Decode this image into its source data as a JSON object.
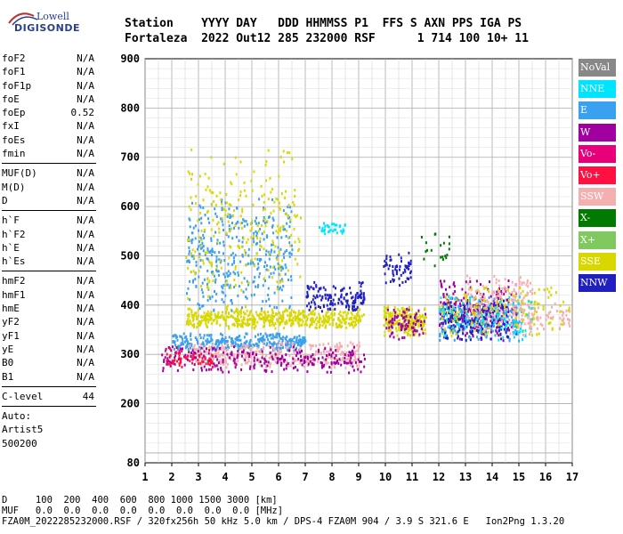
{
  "logo": {
    "line1": "Lowell",
    "line2": "DIGISONDE"
  },
  "header": {
    "line1": "Station    YYYY DAY   DDD HHMMSS P1  FFS S AXN PPS IGA PS",
    "line2": "Fortaleza  2022 Out12 285 232000 RSF      1 714 100 10+ 11"
  },
  "params": {
    "group1": [
      {
        "k": "foF2",
        "v": "N/A"
      },
      {
        "k": "foF1",
        "v": "N/A"
      },
      {
        "k": "foF1p",
        "v": "N/A"
      },
      {
        "k": "foE",
        "v": "N/A"
      },
      {
        "k": "foEp",
        "v": "0.52"
      },
      {
        "k": "fxI",
        "v": "N/A"
      },
      {
        "k": "foEs",
        "v": "N/A"
      },
      {
        "k": "fmin",
        "v": "N/A"
      }
    ],
    "group2": [
      {
        "k": "MUF(D)",
        "v": "N/A"
      },
      {
        "k": "M(D)",
        "v": "N/A"
      },
      {
        "k": "D",
        "v": "N/A"
      }
    ],
    "group3": [
      {
        "k": "h`F",
        "v": "N/A"
      },
      {
        "k": "h`F2",
        "v": "N/A"
      },
      {
        "k": "h`E",
        "v": "N/A"
      },
      {
        "k": "h`Es",
        "v": "N/A"
      }
    ],
    "group4": [
      {
        "k": "hmF2",
        "v": "N/A"
      },
      {
        "k": "hmF1",
        "v": "N/A"
      },
      {
        "k": "hmE",
        "v": "N/A"
      },
      {
        "k": "yF2",
        "v": "N/A"
      },
      {
        "k": "yF1",
        "v": "N/A"
      },
      {
        "k": "yE",
        "v": "N/A"
      },
      {
        "k": "B0",
        "v": "N/A"
      },
      {
        "k": "B1",
        "v": "N/A"
      }
    ],
    "clevel": {
      "k": "C-level",
      "v": "44"
    },
    "auto": [
      "Auto:",
      "Artist5",
      "500200"
    ]
  },
  "legend": [
    {
      "label": "NoVal",
      "color": "#888888"
    },
    {
      "label": "NNE",
      "color": "#00e5ff"
    },
    {
      "label": "E",
      "color": "#3aa0f0"
    },
    {
      "label": "W",
      "color": "#a000a0"
    },
    {
      "label": "Vo-",
      "color": "#e8007a"
    },
    {
      "label": "Vo+",
      "color": "#ff1040"
    },
    {
      "label": "SSW",
      "color": "#f4b0b0"
    },
    {
      "label": "X-",
      "color": "#007a00"
    },
    {
      "label": "X+",
      "color": "#80c860"
    },
    {
      "label": "SSE",
      "color": "#d8d800"
    },
    {
      "label": "NNW",
      "color": "#2020c0"
    }
  ],
  "chart_data": {
    "type": "scatter",
    "title": "",
    "xlabel": "",
    "ylabel": "",
    "xlim": [
      1,
      17
    ],
    "ylim": [
      80,
      900
    ],
    "xticks": [
      "1",
      "2",
      "3",
      "4",
      "5",
      "6",
      "7",
      "8",
      "9",
      "10",
      "11",
      "12",
      "13",
      "14",
      "15",
      "16",
      "17"
    ],
    "yticks": [
      "80",
      "200",
      "300",
      "400",
      "500",
      "600",
      "700",
      "800",
      "900"
    ],
    "grid": true,
    "clusters": [
      {
        "series": "SSE",
        "x": [
          2.5,
          9.2
        ],
        "y": [
          355,
          395
        ],
        "n": 520
      },
      {
        "series": "E",
        "x": [
          2.0,
          7.0
        ],
        "y": [
          310,
          345
        ],
        "n": 320
      },
      {
        "series": "SSW",
        "x": [
          2.6,
          9.0
        ],
        "y": [
          275,
          330
        ],
        "n": 380
      },
      {
        "series": "W",
        "x": [
          1.6,
          9.2
        ],
        "y": [
          265,
          320
        ],
        "n": 260
      },
      {
        "series": "Vo+",
        "x": [
          1.7,
          3.5
        ],
        "y": [
          275,
          315
        ],
        "n": 60
      },
      {
        "series": "E",
        "x": [
          2.5,
          6.5
        ],
        "y": [
          380,
          620
        ],
        "n": 380
      },
      {
        "series": "SSE",
        "x": [
          2.5,
          6.8
        ],
        "y": [
          380,
          720
        ],
        "n": 260
      },
      {
        "series": "NNW",
        "x": [
          7.0,
          9.2
        ],
        "y": [
          390,
          450
        ],
        "n": 140
      },
      {
        "series": "NNE",
        "x": [
          7.5,
          8.5
        ],
        "y": [
          545,
          570
        ],
        "n": 35
      },
      {
        "series": "SSE",
        "x": [
          9.9,
          11.5
        ],
        "y": [
          340,
          400
        ],
        "n": 220
      },
      {
        "series": "NNW",
        "x": [
          9.9,
          11.0
        ],
        "y": [
          440,
          510
        ],
        "n": 60
      },
      {
        "series": "W",
        "x": [
          10.0,
          11.5
        ],
        "y": [
          330,
          400
        ],
        "n": 80
      },
      {
        "series": "E",
        "x": [
          12.0,
          15.0
        ],
        "y": [
          330,
          420
        ],
        "n": 260
      },
      {
        "series": "W",
        "x": [
          12.0,
          15.0
        ],
        "y": [
          330,
          460
        ],
        "n": 200
      },
      {
        "series": "NNW",
        "x": [
          12.2,
          14.6
        ],
        "y": [
          330,
          420
        ],
        "n": 180
      },
      {
        "series": "SSW",
        "x": [
          13.0,
          15.5
        ],
        "y": [
          340,
          470
        ],
        "n": 180
      },
      {
        "series": "SSE",
        "x": [
          12.0,
          16.9
        ],
        "y": [
          340,
          440
        ],
        "n": 160
      },
      {
        "series": "NNE",
        "x": [
          12.0,
          15.5
        ],
        "y": [
          330,
          420
        ],
        "n": 100
      },
      {
        "series": "X-",
        "x": [
          11.3,
          12.5
        ],
        "y": [
          480,
          560
        ],
        "n": 20
      },
      {
        "series": "SSW",
        "x": [
          15.0,
          16.9
        ],
        "y": [
          350,
          410
        ],
        "n": 60
      }
    ]
  },
  "footer": {
    "line1": "D     100  200  400  600  800 1000 1500 3000 [km]",
    "line2": "MUF   0.0  0.0  0.0  0.0  0.0  0.0  0.0  0.0 [MHz]",
    "line3": "FZA0M_2022285232000.RSF / 320fx256h 50 kHz 5.0 km / DPS-4 FZA0M 904 / 3.9 S 321.6 E   Ion2Png 1.3.20"
  }
}
